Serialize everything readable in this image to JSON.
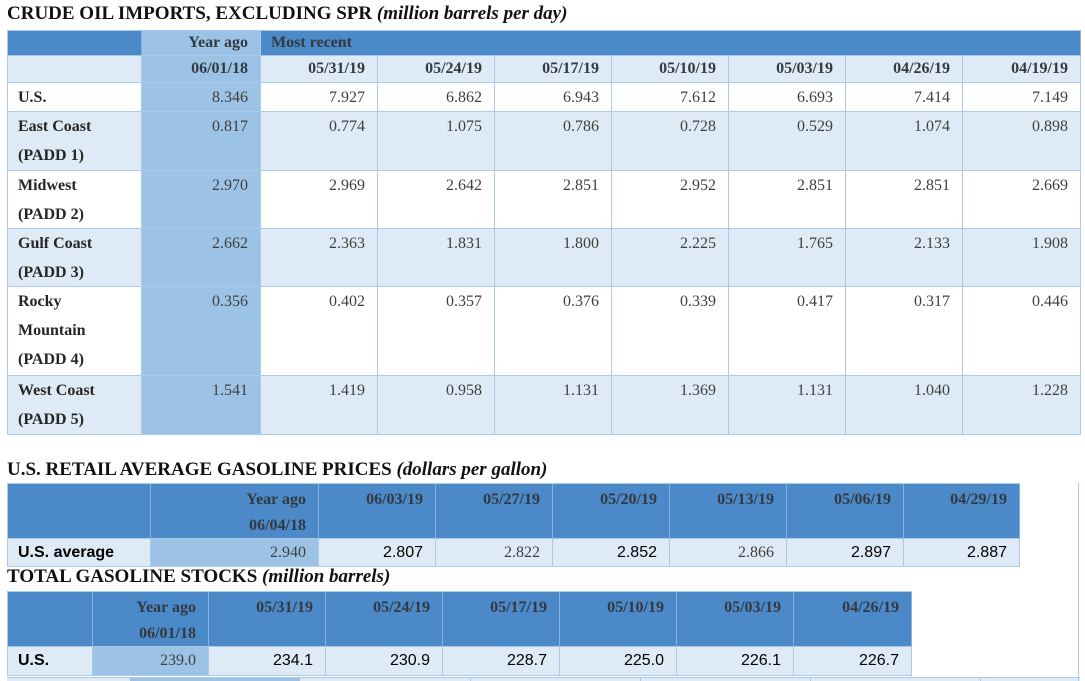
{
  "colors": {
    "header_blue": "#4b89c8",
    "year_ago_column_blue": "#9cc3e6",
    "light_row_blue": "#deebf7",
    "white_row": "#ffffff",
    "cell_border": "#a9cae8",
    "title_text": "#111111",
    "value_text": "#3f3f3f",
    "sans_value_text": "#000000"
  },
  "tables": [
    {
      "title": "CRUDE OIL IMPORTS, EXCLUDING SPR",
      "unit_note": "(million barrels per day)",
      "year_ago_label": "Year ago",
      "most_recent_label": "Most recent",
      "year_ago_date": "06/01/18",
      "dates": [
        "05/31/19",
        "05/24/19",
        "05/17/19",
        "05/10/19",
        "05/03/19",
        "04/26/19",
        "04/19/19"
      ],
      "rows": [
        {
          "label_lines": [
            "U.S."
          ],
          "year_ago": "8.346",
          "values": [
            "7.927",
            "6.862",
            "6.943",
            "7.612",
            "6.693",
            "7.414",
            "7.149"
          ]
        },
        {
          "label_lines": [
            "East Coast",
            "(PADD 1)"
          ],
          "year_ago": "0.817",
          "values": [
            "0.774",
            "1.075",
            "0.786",
            "0.728",
            "0.529",
            "1.074",
            "0.898"
          ]
        },
        {
          "label_lines": [
            "Midwest",
            "(PADD 2)"
          ],
          "year_ago": "2.970",
          "values": [
            "2.969",
            "2.642",
            "2.851",
            "2.952",
            "2.851",
            "2.851",
            "2.669"
          ]
        },
        {
          "label_lines": [
            "Gulf Coast",
            "(PADD 3)"
          ],
          "year_ago": "2.662",
          "values": [
            "2.363",
            "1.831",
            "1.800",
            "2.225",
            "1.765",
            "2.133",
            "1.908"
          ]
        },
        {
          "label_lines": [
            "Rocky",
            "Mountain",
            "(PADD 4)"
          ],
          "year_ago": "0.356",
          "values": [
            "0.402",
            "0.357",
            "0.376",
            "0.339",
            "0.417",
            "0.317",
            "0.446"
          ]
        },
        {
          "label_lines": [
            "West Coast",
            "(PADD 5)"
          ],
          "year_ago": "1.541",
          "values": [
            "1.419",
            "0.958",
            "1.131",
            "1.369",
            "1.131",
            "1.040",
            "1.228"
          ]
        }
      ]
    },
    {
      "title": "U.S. RETAIL AVERAGE GASOLINE PRICES",
      "unit_note": "(dollars per gallon)",
      "year_ago_label": "Year ago",
      "year_ago_date": "06/04/18",
      "dates": [
        "06/03/19",
        "05/27/19",
        "05/20/19",
        "05/13/19",
        "05/06/19",
        "04/29/19"
      ],
      "rows": [
        {
          "label_lines": [
            "U.S. average"
          ],
          "year_ago": "2.940",
          "values": [
            "2.807",
            "2.822",
            "2.852",
            "2.866",
            "2.897",
            "2.887"
          ]
        }
      ]
    },
    {
      "title": "TOTAL GASOLINE STOCKS",
      "unit_note": "(million barrels)",
      "year_ago_label": "Year ago",
      "year_ago_date": "06/01/18",
      "dates": [
        "05/31/19",
        "05/24/19",
        "05/17/19",
        "05/10/19",
        "05/03/19",
        "04/26/19"
      ],
      "rows": [
        {
          "label_lines": [
            "U.S."
          ],
          "year_ago": "239.0",
          "values": [
            "234.1",
            "230.9",
            "228.7",
            "225.0",
            "226.1",
            "226.7"
          ]
        }
      ]
    }
  ]
}
